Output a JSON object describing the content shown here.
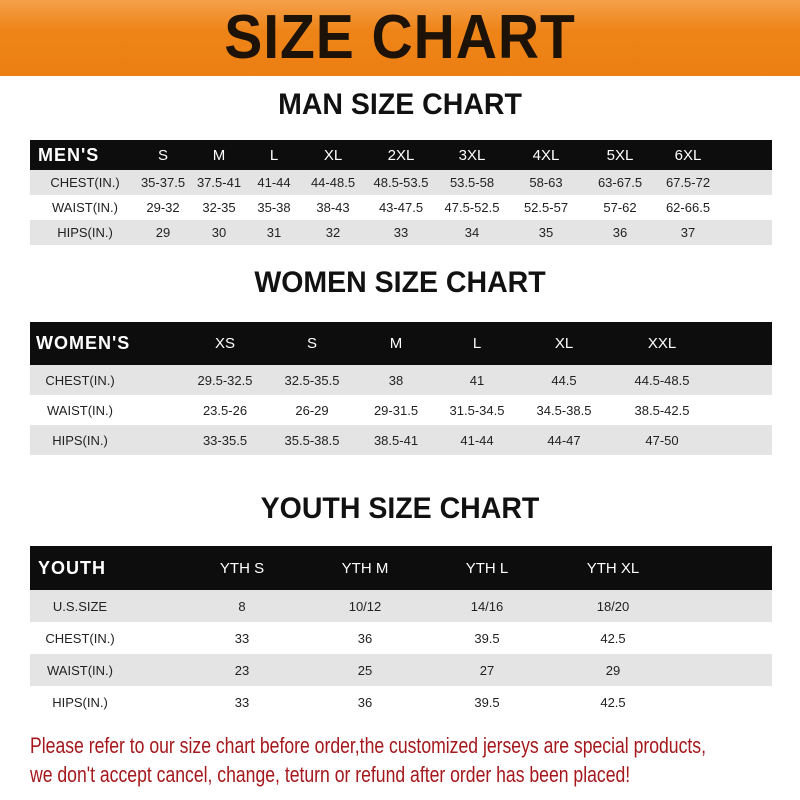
{
  "title": "SIZE CHART",
  "colors": {
    "banner": "#ee8418",
    "header_row": "#0d0d0d",
    "stripe": "#e4e4e4",
    "note": "#a5181c"
  },
  "men": {
    "title": "MAN SIZE CHART",
    "columns": [
      "MEN'S",
      "S",
      "M",
      "L",
      "XL",
      "2XL",
      "3XL",
      "4XL",
      "5XL",
      "6XL"
    ],
    "rows": [
      [
        "CHEST(IN.)",
        "35-37.5",
        "37.5-41",
        "41-44",
        "44-48.5",
        "48.5-53.5",
        "53.5-58",
        "58-63",
        "63-67.5",
        "67.5-72"
      ],
      [
        "WAIST(IN.)",
        "29-32",
        "32-35",
        "35-38",
        "38-43",
        "43-47.5",
        "47.5-52.5",
        "52.5-57",
        "57-62",
        "62-66.5"
      ],
      [
        "HIPS(IN.)",
        "29",
        "30",
        "31",
        "32",
        "33",
        "34",
        "35",
        "36",
        "37"
      ]
    ]
  },
  "women": {
    "title": "WOMEN SIZE CHART",
    "columns": [
      "WOMEN'S",
      "XS",
      "S",
      "M",
      "L",
      "XL",
      "XXL"
    ],
    "rows": [
      [
        "CHEST(IN.)",
        "29.5-32.5",
        "32.5-35.5",
        "38",
        "41",
        "44.5",
        "44.5-48.5"
      ],
      [
        "WAIST(IN.)",
        "23.5-26",
        "26-29",
        "29-31.5",
        "31.5-34.5",
        "34.5-38.5",
        "38.5-42.5"
      ],
      [
        "HIPS(IN.)",
        "33-35.5",
        "35.5-38.5",
        "38.5-41",
        "41-44",
        "44-47",
        "47-50"
      ]
    ]
  },
  "youth": {
    "title": "YOUTH SIZE CHART",
    "columns": [
      "YOUTH",
      "YTH S",
      "YTH M",
      "YTH L",
      "YTH XL"
    ],
    "rows": [
      [
        "U.S.SIZE",
        "8",
        "10/12",
        "14/16",
        "18/20"
      ],
      [
        "CHEST(IN.)",
        "33",
        "36",
        "39.5",
        "42.5"
      ],
      [
        "WAIST(IN.)",
        "23",
        "25",
        "27",
        "29"
      ],
      [
        "HIPS(IN.)",
        "33",
        "36",
        "39.5",
        "42.5"
      ]
    ]
  },
  "note": {
    "line1": "Please refer to our size chart before order,the customized jerseys are special products,",
    "line2": "we don't accept cancel, change, teturn or refund after order has been placed!"
  }
}
